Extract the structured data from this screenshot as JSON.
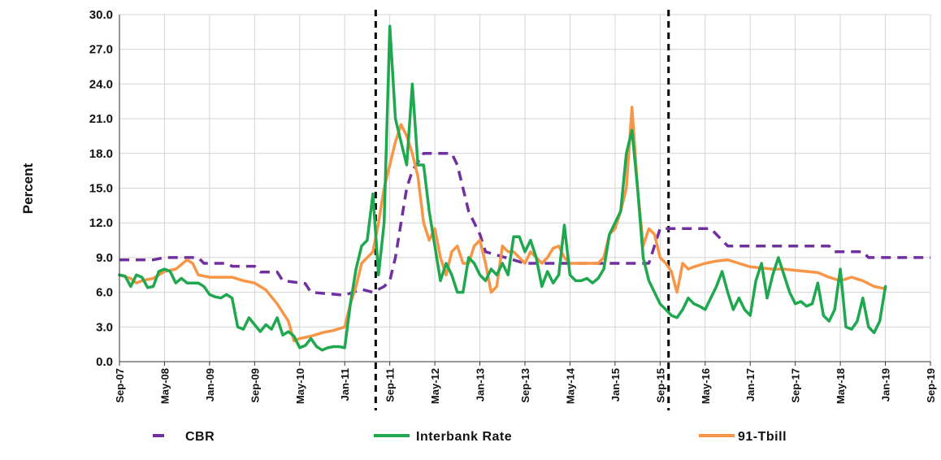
{
  "chart_data": {
    "type": "line",
    "title": "",
    "xlabel": "",
    "ylabel": "Percent",
    "ylim": [
      0,
      30
    ],
    "yticks": [
      "0.0",
      "3.0",
      "6.0",
      "9.0",
      "12.0",
      "15.0",
      "18.0",
      "21.0",
      "24.0",
      "27.0",
      "30.0"
    ],
    "xlim": [
      0,
      144
    ],
    "xticks": [
      {
        "label": "Sep-07",
        "x": 0
      },
      {
        "label": "May-08",
        "x": 8
      },
      {
        "label": "Jan-09",
        "x": 16
      },
      {
        "label": "Sep-09",
        "x": 24
      },
      {
        "label": "May-10",
        "x": 32
      },
      {
        "label": "Jan-11",
        "x": 40
      },
      {
        "label": "Sep-11",
        "x": 48
      },
      {
        "label": "May-12",
        "x": 56
      },
      {
        "label": "Jan-13",
        "x": 64
      },
      {
        "label": "Sep-13",
        "x": 72
      },
      {
        "label": "May-14",
        "x": 80
      },
      {
        "label": "Jan-15",
        "x": 88
      },
      {
        "label": "Sep-15",
        "x": 96
      },
      {
        "label": "May-16",
        "x": 104
      },
      {
        "label": "Jan-17",
        "x": 112
      },
      {
        "label": "Sep-17",
        "x": 120
      },
      {
        "label": "May-18",
        "x": 128
      },
      {
        "label": "Jan-19",
        "x": 136
      },
      {
        "label": "Sep-19",
        "x": 144
      }
    ],
    "grid": true,
    "legend": "bottom",
    "vlines": [
      45.5,
      97.5
    ],
    "series": [
      {
        "name": "CBR",
        "color": "#7030a0",
        "style": "dashed",
        "points": [
          [
            0,
            8.8
          ],
          [
            6,
            8.8
          ],
          [
            8,
            9
          ],
          [
            14,
            9
          ],
          [
            15,
            8.5
          ],
          [
            19,
            8.5
          ],
          [
            20,
            8.25
          ],
          [
            24,
            8.25
          ],
          [
            25,
            7.75
          ],
          [
            28,
            7.75
          ],
          [
            29,
            7
          ],
          [
            33,
            6.75
          ],
          [
            34,
            6
          ],
          [
            40,
            5.75
          ],
          [
            43,
            6.25
          ],
          [
            45,
            6
          ],
          [
            46,
            6.25
          ],
          [
            47,
            6.5
          ],
          [
            48,
            7
          ],
          [
            49,
            9
          ],
          [
            50,
            12
          ],
          [
            51,
            15
          ],
          [
            52,
            16.5
          ],
          [
            54,
            18
          ],
          [
            59,
            18
          ],
          [
            60,
            17
          ],
          [
            62,
            13
          ],
          [
            64,
            11
          ],
          [
            65,
            9.5
          ],
          [
            72,
            8.5
          ],
          [
            88,
            8.5
          ],
          [
            94,
            8.5
          ],
          [
            95,
            10
          ],
          [
            96,
            11.5
          ],
          [
            105,
            11.5
          ],
          [
            106,
            11
          ],
          [
            108,
            10
          ],
          [
            120,
            10
          ],
          [
            126,
            10
          ],
          [
            127,
            9.5
          ],
          [
            132,
            9.5
          ],
          [
            133,
            9
          ],
          [
            144,
            9
          ]
        ]
      },
      {
        "name": "Interbank Rate",
        "color": "#1fa84f",
        "style": "solid",
        "points": [
          [
            0,
            7.5
          ],
          [
            1,
            7.4
          ],
          [
            2,
            6.5
          ],
          [
            3,
            7.5
          ],
          [
            4,
            7.3
          ],
          [
            5,
            6.4
          ],
          [
            6,
            6.5
          ],
          [
            7,
            7.8
          ],
          [
            8,
            8
          ],
          [
            9,
            7.8
          ],
          [
            10,
            6.8
          ],
          [
            11,
            7.2
          ],
          [
            12,
            6.8
          ],
          [
            13,
            6.8
          ],
          [
            14,
            6.8
          ],
          [
            15,
            6.5
          ],
          [
            16,
            5.8
          ],
          [
            17,
            5.6
          ],
          [
            18,
            5.5
          ],
          [
            19,
            5.8
          ],
          [
            20,
            5.5
          ],
          [
            21,
            3
          ],
          [
            22,
            2.8
          ],
          [
            23,
            3.8
          ],
          [
            24,
            3.2
          ],
          [
            25,
            2.6
          ],
          [
            26,
            3.2
          ],
          [
            27,
            2.8
          ],
          [
            28,
            3.8
          ],
          [
            29,
            2.3
          ],
          [
            30,
            2.6
          ],
          [
            31,
            2.2
          ],
          [
            32,
            1.2
          ],
          [
            33,
            1.4
          ],
          [
            34,
            2
          ],
          [
            35,
            1.3
          ],
          [
            36,
            1
          ],
          [
            37,
            1.2
          ],
          [
            38,
            1.3
          ],
          [
            39,
            1.3
          ],
          [
            40,
            1.2
          ],
          [
            41,
            5
          ],
          [
            42,
            8
          ],
          [
            43,
            10
          ],
          [
            44,
            10.5
          ],
          [
            45,
            14.5
          ],
          [
            46,
            7.5
          ],
          [
            47,
            12
          ],
          [
            48,
            29
          ],
          [
            49,
            21
          ],
          [
            50,
            19
          ],
          [
            51,
            17
          ],
          [
            52,
            24
          ],
          [
            53,
            17
          ],
          [
            54,
            17
          ],
          [
            55,
            13
          ],
          [
            56,
            10
          ],
          [
            57,
            7
          ],
          [
            58,
            8.5
          ],
          [
            59,
            7.5
          ],
          [
            60,
            6
          ],
          [
            61,
            6
          ],
          [
            62,
            9
          ],
          [
            63,
            8.5
          ],
          [
            64,
            7.5
          ],
          [
            65,
            7
          ],
          [
            66,
            8
          ],
          [
            67,
            7.5
          ],
          [
            68,
            8.5
          ],
          [
            69,
            7.5
          ],
          [
            70,
            10.8
          ],
          [
            71,
            10.8
          ],
          [
            72,
            9.5
          ],
          [
            73,
            10.5
          ],
          [
            74,
            9
          ],
          [
            75,
            6.5
          ],
          [
            76,
            7.8
          ],
          [
            77,
            6.8
          ],
          [
            78,
            7.5
          ],
          [
            79,
            11.8
          ],
          [
            80,
            7.5
          ],
          [
            81,
            7
          ],
          [
            82,
            7
          ],
          [
            83,
            7.2
          ],
          [
            84,
            6.8
          ],
          [
            85,
            7.2
          ],
          [
            86,
            8
          ],
          [
            87,
            11
          ],
          [
            88,
            12
          ],
          [
            89,
            13
          ],
          [
            90,
            18
          ],
          [
            91,
            20
          ],
          [
            92,
            15
          ],
          [
            93,
            9
          ],
          [
            94,
            7
          ],
          [
            95,
            6
          ],
          [
            96,
            5
          ],
          [
            97,
            4.5
          ],
          [
            98,
            4
          ],
          [
            99,
            3.8
          ],
          [
            100,
            4.5
          ],
          [
            101,
            5.5
          ],
          [
            102,
            5
          ],
          [
            103,
            4.8
          ],
          [
            104,
            4.5
          ],
          [
            105,
            5.5
          ],
          [
            106,
            6.5
          ],
          [
            107,
            7.8
          ],
          [
            108,
            6
          ],
          [
            109,
            4.5
          ],
          [
            110,
            5.5
          ],
          [
            111,
            4.5
          ],
          [
            112,
            4
          ],
          [
            113,
            7
          ],
          [
            114,
            8.5
          ],
          [
            115,
            5.5
          ],
          [
            116,
            7.5
          ],
          [
            117,
            9
          ],
          [
            118,
            7.5
          ],
          [
            119,
            6
          ],
          [
            120,
            5
          ],
          [
            121,
            5.2
          ],
          [
            122,
            4.8
          ],
          [
            123,
            5
          ],
          [
            124,
            6.8
          ],
          [
            125,
            4
          ],
          [
            126,
            3.5
          ],
          [
            127,
            4.5
          ],
          [
            128,
            8
          ],
          [
            129,
            3
          ],
          [
            130,
            2.8
          ],
          [
            131,
            3.5
          ],
          [
            132,
            5.5
          ],
          [
            133,
            3
          ],
          [
            134,
            2.5
          ],
          [
            135,
            3.5
          ],
          [
            136,
            6.5
          ]
        ]
      },
      {
        "name": "91-Tbill",
        "color": "#f79646",
        "style": "solid",
        "points": [
          [
            0,
            7.5
          ],
          [
            2,
            7.2
          ],
          [
            3,
            6.8
          ],
          [
            4,
            7
          ],
          [
            6,
            7.2
          ],
          [
            8,
            7.8
          ],
          [
            10,
            8
          ],
          [
            12,
            8.8
          ],
          [
            13,
            8.5
          ],
          [
            14,
            7.5
          ],
          [
            16,
            7.3
          ],
          [
            18,
            7.3
          ],
          [
            20,
            7.3
          ],
          [
            22,
            7
          ],
          [
            24,
            6.8
          ],
          [
            26,
            6.2
          ],
          [
            28,
            5
          ],
          [
            30,
            3.5
          ],
          [
            31,
            1.8
          ],
          [
            32,
            2
          ],
          [
            34,
            2.2
          ],
          [
            36,
            2.5
          ],
          [
            38,
            2.7
          ],
          [
            40,
            3
          ],
          [
            41,
            5
          ],
          [
            42,
            6.5
          ],
          [
            43,
            8.5
          ],
          [
            44,
            9
          ],
          [
            45,
            9.5
          ],
          [
            46,
            12
          ],
          [
            47,
            15
          ],
          [
            48,
            17
          ],
          [
            49,
            19
          ],
          [
            50,
            20.5
          ],
          [
            51,
            19.5
          ],
          [
            52,
            18
          ],
          [
            53,
            16
          ],
          [
            54,
            12
          ],
          [
            55,
            10.5
          ],
          [
            56,
            11.5
          ],
          [
            57,
            9
          ],
          [
            58,
            7.5
          ],
          [
            59,
            9.5
          ],
          [
            60,
            10
          ],
          [
            61,
            8.5
          ],
          [
            62,
            8.5
          ],
          [
            63,
            10
          ],
          [
            64,
            10.5
          ],
          [
            65,
            8.5
          ],
          [
            66,
            6
          ],
          [
            67,
            6.5
          ],
          [
            68,
            10
          ],
          [
            69,
            9.5
          ],
          [
            70,
            9.5
          ],
          [
            71,
            9
          ],
          [
            72,
            8.5
          ],
          [
            73,
            9.5
          ],
          [
            74,
            9
          ],
          [
            75,
            8.5
          ],
          [
            76,
            9
          ],
          [
            77,
            9.8
          ],
          [
            78,
            10
          ],
          [
            79,
            9
          ],
          [
            80,
            8.5
          ],
          [
            82,
            8.5
          ],
          [
            84,
            8.5
          ],
          [
            85,
            8.5
          ],
          [
            86,
            9
          ],
          [
            87,
            11
          ],
          [
            88,
            11.5
          ],
          [
            89,
            13
          ],
          [
            90,
            15
          ],
          [
            91,
            22
          ],
          [
            92,
            15
          ],
          [
            93,
            10
          ],
          [
            94,
            11.5
          ],
          [
            95,
            11
          ],
          [
            96,
            9
          ],
          [
            97,
            8.5
          ],
          [
            98,
            7.8
          ],
          [
            99,
            6
          ],
          [
            100,
            8.5
          ],
          [
            101,
            8
          ],
          [
            102,
            8.2
          ],
          [
            104,
            8.5
          ],
          [
            106,
            8.7
          ],
          [
            108,
            8.8
          ],
          [
            110,
            8.5
          ],
          [
            112,
            8.2
          ],
          [
            114,
            8.1
          ],
          [
            116,
            8
          ],
          [
            118,
            8
          ],
          [
            120,
            7.9
          ],
          [
            122,
            7.8
          ],
          [
            124,
            7.7
          ],
          [
            126,
            7.3
          ],
          [
            128,
            7
          ],
          [
            130,
            7.3
          ],
          [
            132,
            7
          ],
          [
            134,
            6.5
          ],
          [
            136,
            6.3
          ]
        ]
      }
    ]
  }
}
